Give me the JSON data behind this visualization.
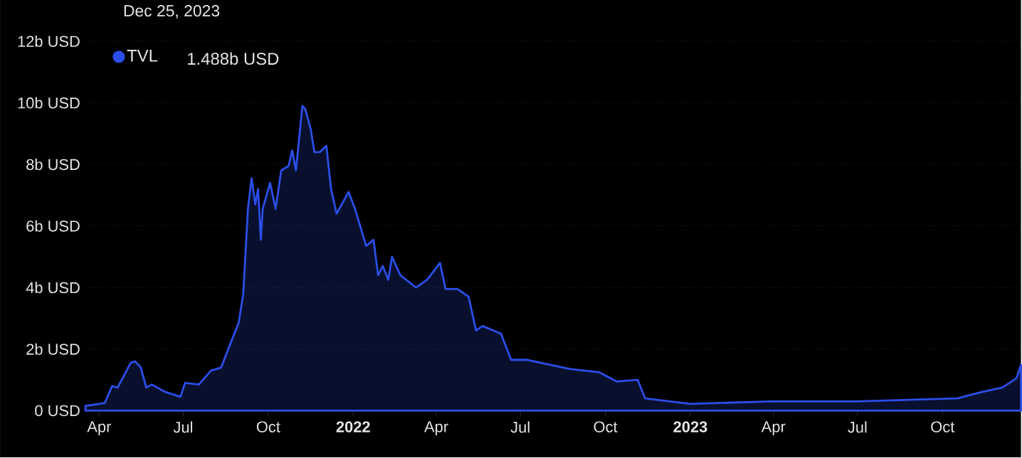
{
  "chart_data": {
    "type": "area",
    "title": "Dec 25, 2023",
    "annotations": [
      "1.488b USD"
    ],
    "x": [
      "2021-03-17",
      "2021-04-07",
      "2021-04-15",
      "2021-04-21",
      "2021-04-29",
      "2021-05-05",
      "2021-05-10",
      "2021-05-16",
      "2021-05-22",
      "2021-05-28",
      "2021-06-12",
      "2021-06-28",
      "2021-07-03",
      "2021-07-18",
      "2021-07-31",
      "2021-08-11",
      "2021-08-22",
      "2021-08-30",
      "2021-09-04",
      "2021-09-09",
      "2021-09-13",
      "2021-09-17",
      "2021-09-20",
      "2021-09-23",
      "2021-09-25",
      "2021-10-03",
      "2021-10-09",
      "2021-10-15",
      "2021-10-23",
      "2021-10-27",
      "2021-10-31",
      "2021-11-07",
      "2021-11-10",
      "2021-11-16",
      "2021-11-20",
      "2021-11-26",
      "2021-12-03",
      "2021-12-08",
      "2021-12-14",
      "2021-12-27",
      "2022-01-03",
      "2022-01-15",
      "2022-01-23",
      "2022-01-28",
      "2022-02-02",
      "2022-02-08",
      "2022-02-12",
      "2022-02-21",
      "2022-03-10",
      "2022-03-22",
      "2022-04-05",
      "2022-04-11",
      "2022-04-24",
      "2022-05-06",
      "2022-05-14",
      "2022-05-21",
      "2022-06-10",
      "2022-06-21",
      "2022-07-08",
      "2022-08-24",
      "2022-09-24",
      "2022-10-13",
      "2022-11-05",
      "2022-11-13",
      "2023-01-01",
      "2023-04-01",
      "2023-07-01",
      "2023-10-17",
      "2023-11-12",
      "2023-12-05",
      "2023-12-20",
      "2023-12-25"
    ],
    "series": [
      {
        "name": "TVL",
        "color": "#2b4ee8",
        "values": [
          0.15,
          0.25,
          0.8,
          0.75,
          1.2,
          1.55,
          1.6,
          1.4,
          0.75,
          0.85,
          0.6,
          0.45,
          0.9,
          0.85,
          1.3,
          1.4,
          2.25,
          2.85,
          3.8,
          6.55,
          7.55,
          6.7,
          7.2,
          5.55,
          6.55,
          7.4,
          6.55,
          7.8,
          7.95,
          8.45,
          7.8,
          9.9,
          9.8,
          9.15,
          8.4,
          8.4,
          8.6,
          7.2,
          6.4,
          7.1,
          6.55,
          5.35,
          5.55,
          4.4,
          4.7,
          4.25,
          5.0,
          4.4,
          4.0,
          4.25,
          4.8,
          3.95,
          3.95,
          3.7,
          2.6,
          2.75,
          2.5,
          1.65,
          1.65,
          1.35,
          1.25,
          0.95,
          1.0,
          0.4,
          0.22,
          0.3,
          0.3,
          0.4,
          0.6,
          0.75,
          1.05,
          1.488
        ]
      }
    ],
    "xlim": [
      "2021-03-17",
      "2023-12-25"
    ],
    "xticks": [
      {
        "value": "2021-04-01",
        "label": "Apr"
      },
      {
        "value": "2021-07-01",
        "label": "Jul"
      },
      {
        "value": "2021-10-01",
        "label": "Oct"
      },
      {
        "value": "2022-01-01",
        "label": "2022"
      },
      {
        "value": "2022-04-01",
        "label": "Apr"
      },
      {
        "value": "2022-07-01",
        "label": "Jul"
      },
      {
        "value": "2022-10-01",
        "label": "Oct"
      },
      {
        "value": "2023-01-01",
        "label": "2023"
      },
      {
        "value": "2023-04-01",
        "label": "Apr"
      },
      {
        "value": "2023-07-01",
        "label": "Jul"
      },
      {
        "value": "2023-10-01",
        "label": "Oct"
      }
    ],
    "ylim": [
      0,
      12
    ],
    "yticks": [
      {
        "value": 0,
        "label": "0 USD"
      },
      {
        "value": 2,
        "label": "2b USD"
      },
      {
        "value": 4,
        "label": "4b USD"
      },
      {
        "value": 6,
        "label": "6b USD"
      },
      {
        "value": 8,
        "label": "8b USD"
      },
      {
        "value": 10,
        "label": "10b USD"
      },
      {
        "value": 12,
        "label": "12b USD"
      }
    ],
    "grid": "y",
    "legend": "top left",
    "line_style": "solid",
    "marker": "none"
  }
}
